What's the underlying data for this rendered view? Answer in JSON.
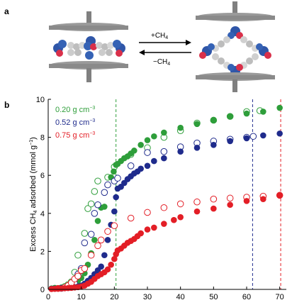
{
  "panel_a": {
    "letter": "a",
    "forward_label": "+CH",
    "forward_sub": "4",
    "reverse_label": "−CH",
    "reverse_sub": "4"
  },
  "panel_b": {
    "letter": "b"
  },
  "chart_data": {
    "type": "scatter",
    "xlabel": "",
    "ylabel_prefix": "Excess CH",
    "ylabel_sub": "4",
    "ylabel_suffix": " adsorbed (mmol g",
    "ylabel_sup": "−1",
    "ylabel_end": ")",
    "xlim": [
      0,
      72
    ],
    "ylim": [
      0,
      10
    ],
    "xticks": [
      0,
      10,
      20,
      30,
      40,
      50,
      60,
      70
    ],
    "yticks": [
      0,
      2,
      4,
      6,
      8,
      10
    ],
    "legend_position": "top-left",
    "marker_note": "filled = adsorption, open = desorption",
    "series": [
      {
        "name": "0.20 g cm",
        "name_sup": "−3",
        "color": "#2e9e3a",
        "dashed_x": 20.5,
        "filled": [
          [
            1,
            0.05
          ],
          [
            2,
            0.06
          ],
          [
            3,
            0.07
          ],
          [
            4,
            0.08
          ],
          [
            5,
            0.1
          ],
          [
            6,
            0.14
          ],
          [
            7,
            0.2
          ],
          [
            8,
            0.3
          ],
          [
            9,
            0.45
          ],
          [
            10,
            0.6
          ],
          [
            11,
            0.85
          ],
          [
            12,
            1.3
          ],
          [
            13,
            1.9
          ],
          [
            14,
            2.6
          ],
          [
            15,
            3.6
          ],
          [
            16,
            4.3
          ],
          [
            17,
            4.35
          ],
          [
            18,
            5.5
          ],
          [
            19,
            5.9
          ],
          [
            19.8,
            6.2
          ],
          [
            20.5,
            6.55
          ],
          [
            21,
            6.6
          ],
          [
            22,
            6.75
          ],
          [
            23,
            6.9
          ],
          [
            24,
            7.0
          ],
          [
            25,
            7.15
          ],
          [
            26,
            7.3
          ],
          [
            28,
            7.6
          ],
          [
            30,
            7.85
          ],
          [
            32,
            8.05
          ],
          [
            35,
            8.25
          ],
          [
            40,
            8.5
          ],
          [
            45,
            8.7
          ],
          [
            50,
            8.9
          ],
          [
            55,
            9.1
          ],
          [
            60,
            9.25
          ],
          [
            65,
            9.35
          ],
          [
            70,
            9.55
          ]
        ],
        "open": [
          [
            2,
            0.06
          ],
          [
            4,
            0.08
          ],
          [
            5,
            0.15
          ],
          [
            6,
            0.25
          ],
          [
            7,
            0.4
          ],
          [
            8,
            0.9
          ],
          [
            9,
            1.8
          ],
          [
            10,
            1.05
          ],
          [
            11,
            2.95
          ],
          [
            12,
            4.25
          ],
          [
            13,
            4.5
          ],
          [
            14,
            5.15
          ],
          [
            15,
            5.7
          ],
          [
            18,
            5.9
          ],
          [
            20,
            6.45
          ],
          [
            25,
            7.1
          ],
          [
            30,
            7.45
          ],
          [
            35,
            8.0
          ],
          [
            40,
            8.35
          ],
          [
            45,
            8.75
          ],
          [
            50,
            8.9
          ],
          [
            55,
            9.1
          ],
          [
            60,
            9.35
          ],
          [
            64,
            9.4
          ]
        ]
      },
      {
        "name": "0.52 g cm",
        "name_sup": "−3",
        "color": "#1f2b8c",
        "dashed_x": 61.8,
        "filled": [
          [
            1,
            0.03
          ],
          [
            2,
            0.04
          ],
          [
            3,
            0.05
          ],
          [
            4,
            0.06
          ],
          [
            5,
            0.07
          ],
          [
            6,
            0.08
          ],
          [
            7,
            0.09
          ],
          [
            8,
            0.12
          ],
          [
            9,
            0.15
          ],
          [
            10,
            0.2
          ],
          [
            11,
            0.3
          ],
          [
            12,
            0.45
          ],
          [
            13,
            0.6
          ],
          [
            14,
            0.8
          ],
          [
            15,
            1.0
          ],
          [
            16,
            1.2
          ],
          [
            17,
            1.8
          ],
          [
            18,
            2.6
          ],
          [
            19,
            3.4
          ],
          [
            20,
            4.1
          ],
          [
            20.5,
            4.85
          ],
          [
            21,
            5.3
          ],
          [
            22,
            5.4
          ],
          [
            23,
            5.6
          ],
          [
            24,
            5.8
          ],
          [
            25,
            5.95
          ],
          [
            26,
            6.1
          ],
          [
            27,
            6.2
          ],
          [
            28,
            6.35
          ],
          [
            30,
            6.5
          ],
          [
            32,
            6.75
          ],
          [
            35,
            6.9
          ],
          [
            40,
            7.25
          ],
          [
            45,
            7.45
          ],
          [
            50,
            7.6
          ],
          [
            55,
            7.8
          ],
          [
            60,
            7.95
          ],
          [
            65,
            8.1
          ],
          [
            70,
            8.2
          ]
        ],
        "open": [
          [
            4,
            0.06
          ],
          [
            6,
            0.1
          ],
          [
            8,
            0.3
          ],
          [
            9,
            0.8
          ],
          [
            10,
            1.1
          ],
          [
            11,
            2.45
          ],
          [
            13,
            2.9
          ],
          [
            14,
            4.0
          ],
          [
            15,
            4.45
          ],
          [
            17,
            5.1
          ],
          [
            18,
            5.5
          ],
          [
            20,
            5.7
          ],
          [
            21,
            5.85
          ],
          [
            25,
            6.5
          ],
          [
            30,
            7.2
          ],
          [
            35,
            7.25
          ],
          [
            40,
            7.5
          ],
          [
            45,
            7.7
          ],
          [
            50,
            7.8
          ],
          [
            55,
            7.9
          ],
          [
            60,
            8.0
          ],
          [
            62,
            8.05
          ]
        ]
      },
      {
        "name": "0.75 g cm",
        "name_sup": "−3",
        "color": "#e31e26",
        "dashed_x": 70.3,
        "filled": [
          [
            1,
            0.02
          ],
          [
            2,
            0.03
          ],
          [
            3,
            0.04
          ],
          [
            4,
            0.05
          ],
          [
            5,
            0.06
          ],
          [
            6,
            0.07
          ],
          [
            7,
            0.08
          ],
          [
            8,
            0.1
          ],
          [
            9,
            0.12
          ],
          [
            10,
            0.15
          ],
          [
            11,
            0.2
          ],
          [
            12,
            0.3
          ],
          [
            13,
            0.4
          ],
          [
            14,
            0.55
          ],
          [
            15,
            0.7
          ],
          [
            16,
            0.8
          ],
          [
            17,
            0.9
          ],
          [
            18,
            1.05
          ],
          [
            19,
            1.3
          ],
          [
            20,
            1.6
          ],
          [
            20.5,
            1.85
          ],
          [
            21,
            2.05
          ],
          [
            22,
            2.15
          ],
          [
            23,
            2.3
          ],
          [
            24,
            2.45
          ],
          [
            25,
            2.55
          ],
          [
            26,
            2.65
          ],
          [
            27,
            2.8
          ],
          [
            28,
            2.95
          ],
          [
            30,
            3.15
          ],
          [
            32,
            3.25
          ],
          [
            35,
            3.45
          ],
          [
            38,
            3.65
          ],
          [
            40,
            3.8
          ],
          [
            45,
            4.1
          ],
          [
            50,
            4.25
          ],
          [
            55,
            4.45
          ],
          [
            60,
            4.65
          ],
          [
            65,
            4.75
          ],
          [
            70,
            4.95
          ]
        ],
        "open": [
          [
            3,
            0.05
          ],
          [
            5,
            0.1
          ],
          [
            6,
            0.2
          ],
          [
            7,
            0.35
          ],
          [
            8,
            0.55
          ],
          [
            9,
            0.7
          ],
          [
            10,
            1.0
          ],
          [
            11,
            1.1
          ],
          [
            13,
            1.8
          ],
          [
            15,
            2.3
          ],
          [
            16,
            2.6
          ],
          [
            18,
            3.05
          ],
          [
            20,
            3.35
          ],
          [
            25,
            3.75
          ],
          [
            30,
            4.05
          ],
          [
            35,
            4.3
          ],
          [
            40,
            4.5
          ],
          [
            45,
            4.6
          ],
          [
            50,
            4.75
          ],
          [
            55,
            4.8
          ],
          [
            60,
            4.85
          ],
          [
            65,
            4.9
          ],
          [
            70,
            4.95
          ]
        ]
      }
    ]
  }
}
